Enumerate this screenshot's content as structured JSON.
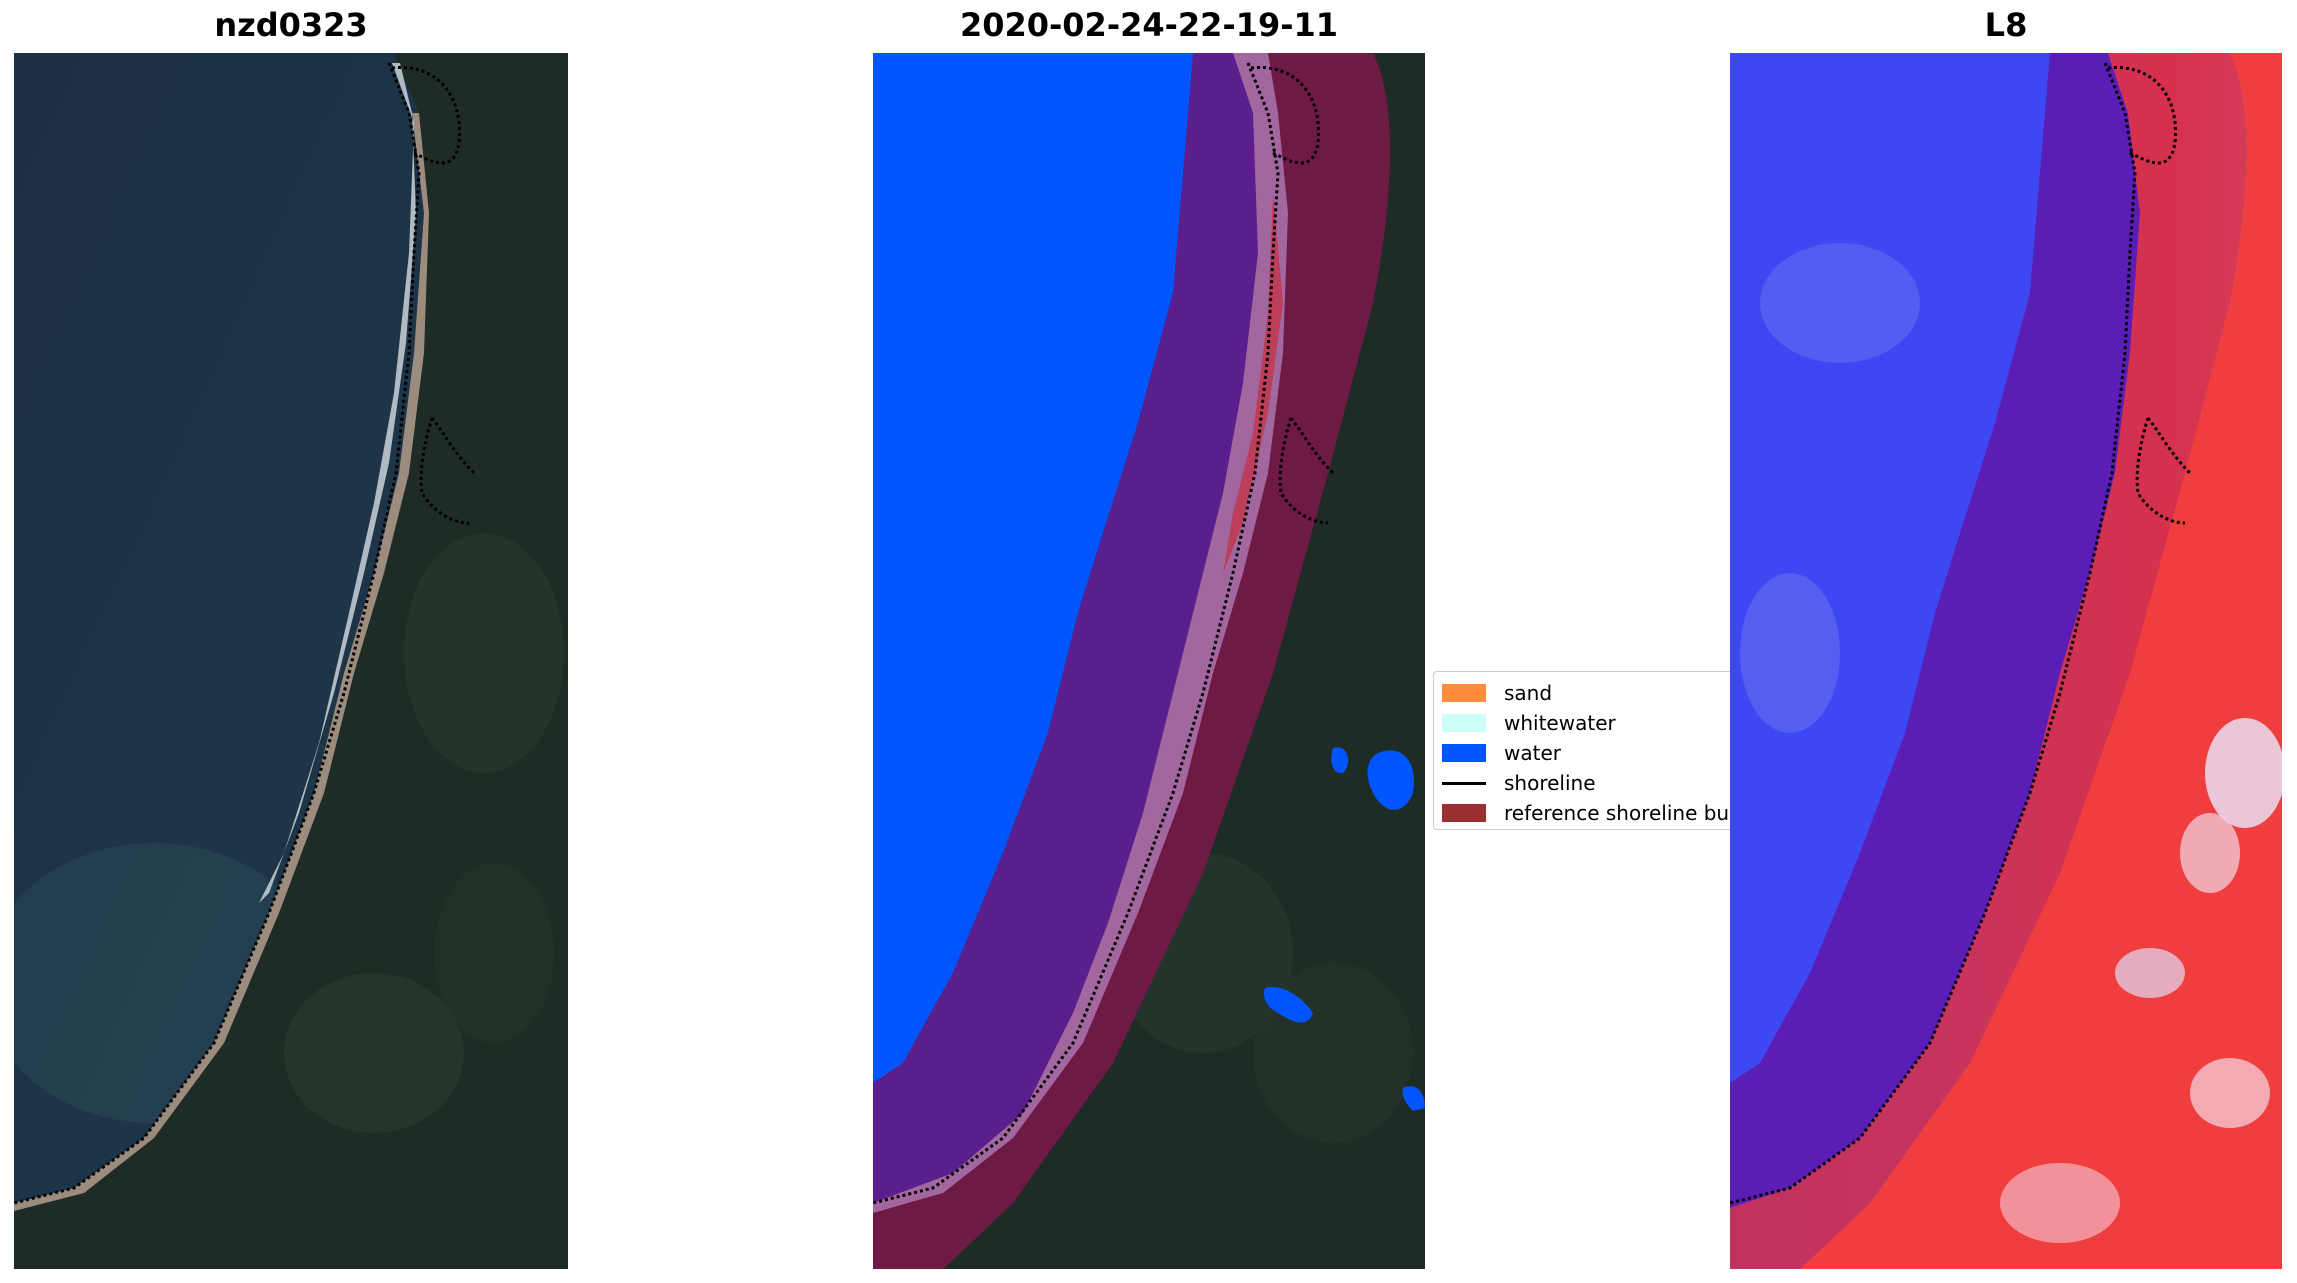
{
  "titles": {
    "rgb": "nzd0323",
    "classified": "2020-02-24-22-19-11",
    "index": "L8"
  },
  "legend": {
    "items": [
      {
        "label": "sand",
        "type": "patch",
        "color": "#ff8c3c"
      },
      {
        "label": "whitewater",
        "type": "patch",
        "color": "#ccfff7"
      },
      {
        "label": "water",
        "type": "patch",
        "color": "#0055ff"
      },
      {
        "label": "shoreline",
        "type": "line",
        "color": "#000000"
      },
      {
        "label": "reference shoreline bu",
        "type": "patch",
        "color": "#9b3030"
      }
    ]
  },
  "colors": {
    "ocean": "#1d3345",
    "land": "#1f2a26",
    "water_class": "#0055ff",
    "buffer_overlay": "#6b1a4f",
    "index_blue": "#3b49f5",
    "index_red": "#f03a3a"
  }
}
